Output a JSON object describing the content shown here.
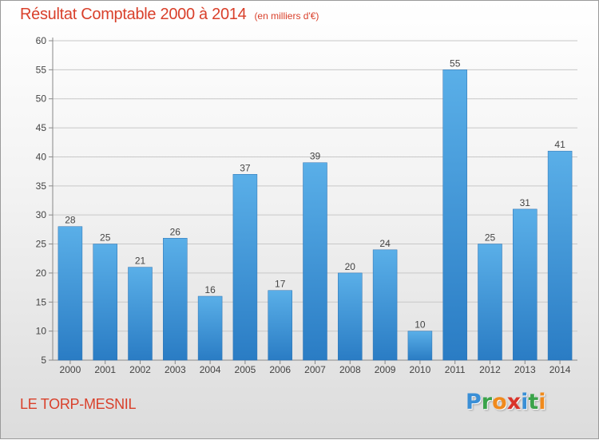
{
  "title": "Résultat Comptable 2000 à 2014",
  "subtitle": "(en milliers d'€)",
  "commune": "LE TORP-MESNIL",
  "logo": {
    "letters": [
      "P",
      "r",
      "o",
      "x",
      "i",
      "t",
      "i"
    ],
    "colors": [
      "#3a8fd6",
      "#3aa34a",
      "#f08a1c",
      "#d9342b",
      "#3a8fd6",
      "#3aa34a",
      "#f08a1c"
    ]
  },
  "colors": {
    "bar_light": "#5aafe8",
    "bar_dark": "#2a7cc4",
    "accent_text": "#d9402b",
    "grid": "#c8c8c8"
  },
  "chart_data": {
    "type": "bar",
    "title": "Résultat Comptable 2000 à 2014",
    "subtitle": "(en milliers d'€)",
    "categories": [
      "2000",
      "2001",
      "2002",
      "2003",
      "2004",
      "2005",
      "2006",
      "2007",
      "2008",
      "2009",
      "2010",
      "2011",
      "2012",
      "2013",
      "2014"
    ],
    "values": [
      28,
      25,
      21,
      26,
      16,
      37,
      17,
      39,
      20,
      24,
      10,
      55,
      25,
      31,
      41
    ],
    "ylim": [
      5,
      60
    ],
    "yticks": [
      5,
      10,
      15,
      20,
      25,
      30,
      35,
      40,
      45,
      50,
      55,
      60
    ],
    "grid": true,
    "legend": "none"
  }
}
